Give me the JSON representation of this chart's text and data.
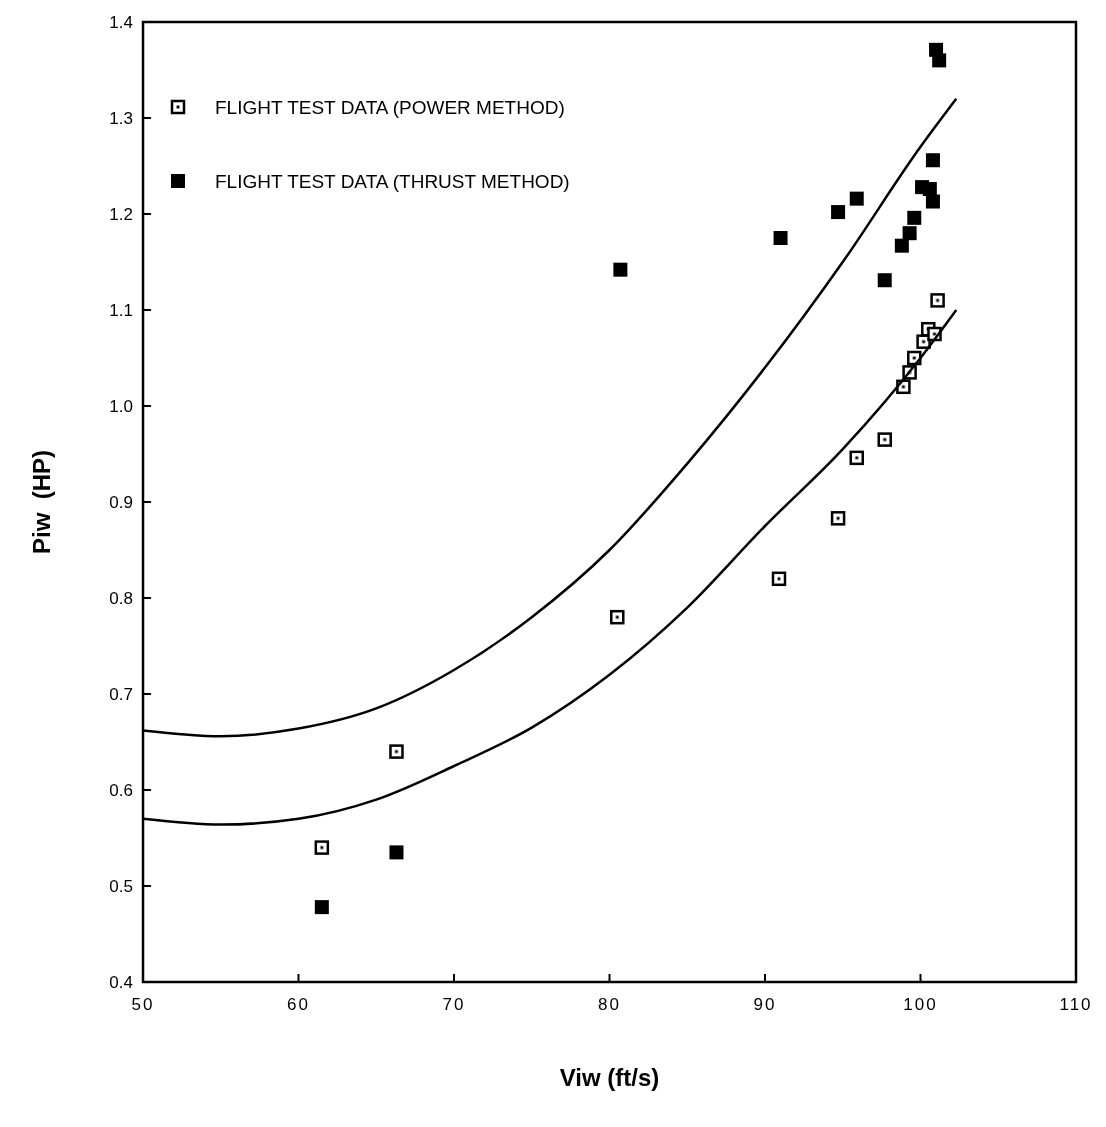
{
  "chart_data": {
    "type": "scatter",
    "xlabel": "Viw (ft/s)",
    "ylabel": "Piw  (HP)",
    "xlim": [
      50,
      110
    ],
    "xticks": [
      50,
      60,
      70,
      80,
      90,
      100,
      110
    ],
    "ylim": [
      0.4,
      1.4
    ],
    "yticks": [
      0.4,
      0.5,
      0.6,
      0.7,
      0.8,
      0.9,
      {
        "value": 1,
        "label": "1.0"
      },
      1.1,
      1.2,
      1.3,
      1.4
    ],
    "grid": false,
    "legend": "top left",
    "marker": "square",
    "series": [
      {
        "name": "FLIGHT TEST DATA (POWER METHOD)",
        "color": "#000000",
        "x": [
          61.5,
          66.3,
          80.5,
          90.9,
          94.7,
          95.9,
          97.7,
          98.9,
          99.3,
          99.6,
          100.2,
          100.5,
          100.9,
          101.1
        ],
        "values": [
          0.54,
          0.64,
          0.78,
          0.82,
          0.883,
          0.946,
          0.965,
          1.02,
          1.035,
          1.05,
          1.067,
          1.08,
          1.075,
          1.11
        ]
      },
      {
        "name": "FLIGHT TEST DATA (THRUST METHOD)",
        "color": "#000000",
        "x": [
          61.5,
          66.3,
          80.7,
          91.0,
          94.7,
          95.9,
          97.7,
          98.8,
          99.3,
          99.6,
          100.1,
          100.6,
          100.8,
          100.8,
          101.0,
          101.2
        ],
        "values": [
          0.478,
          0.535,
          1.142,
          1.175,
          1.202,
          1.216,
          1.131,
          1.167,
          1.18,
          1.196,
          1.228,
          1.226,
          1.256,
          1.213,
          1.371,
          1.36
        ]
      },
      {
        "type": "line",
        "color": "#000000",
        "marker": "none",
        "x": [
          50,
          55,
          60,
          65,
          70,
          75,
          80,
          85,
          90,
          95,
          100,
          102.3
        ],
        "values": [
          0.662,
          0.656,
          0.664,
          0.685,
          0.725,
          0.78,
          0.85,
          0.94,
          1.04,
          1.15,
          1.27,
          1.32
        ]
      },
      {
        "type": "line",
        "color": "#000000",
        "marker": "none",
        "x": [
          50,
          55,
          60,
          65,
          70,
          75,
          80,
          85,
          90,
          95,
          100,
          102.3
        ],
        "values": [
          0.57,
          0.564,
          0.57,
          0.59,
          0.625,
          0.665,
          0.72,
          0.79,
          0.875,
          0.955,
          1.05,
          1.1
        ]
      }
    ]
  }
}
